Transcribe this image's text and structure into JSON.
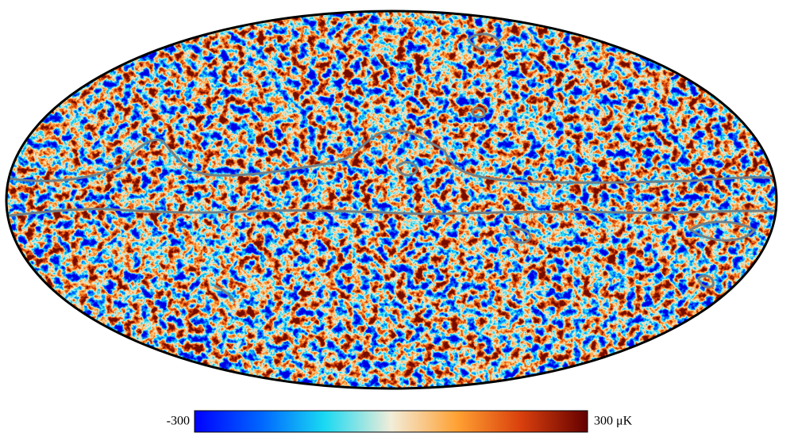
{
  "colorbar": {
    "ticks": [
      -300,
      {
        "value": 300,
        "label": "300 μK"
      }
    ]
  }
}
